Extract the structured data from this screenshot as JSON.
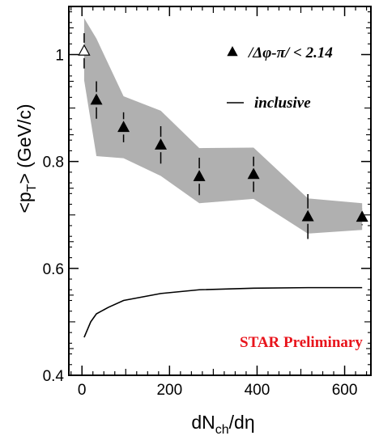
{
  "chart_data": {
    "type": "scatter",
    "title": "",
    "xlabel": "dN_ch/dη",
    "ylabel": "<p_T> (GeV/c)",
    "xlim": [
      -30,
      660
    ],
    "ylim": [
      0.4,
      1.09
    ],
    "x_ticks": [
      0,
      200,
      400,
      600
    ],
    "y_ticks": [
      0.4,
      0.6,
      0.8,
      1
    ],
    "x_tick_labels": [
      "0",
      "200",
      "400",
      "600"
    ],
    "y_tick_labels": [
      "0.4",
      "0.6",
      "0.8",
      "1"
    ],
    "grid": false,
    "legend_position": "top-right",
    "legend": {
      "marker_text_pre": "/Δφ-π/ < ",
      "marker_text_num": "2.14",
      "line_text": "inclusive"
    },
    "annotation": {
      "text": "STAR Preliminary",
      "color": "#e8141c"
    },
    "series": [
      {
        "name": "/Δφ-π/ < 2.14",
        "marker": "filled-triangle",
        "points": [
          {
            "x": 33,
            "y": 0.915,
            "err": 0.035
          },
          {
            "x": 95,
            "y": 0.864,
            "err": 0.028
          },
          {
            "x": 180,
            "y": 0.831,
            "err": 0.035
          },
          {
            "x": 268,
            "y": 0.772,
            "err": 0.035
          },
          {
            "x": 392,
            "y": 0.776,
            "err": 0.033
          },
          {
            "x": 516,
            "y": 0.697,
            "err": 0.042
          },
          {
            "x": 640,
            "y": 0.696,
            "err": 0.015
          }
        ]
      },
      {
        "name": "",
        "marker": "open-triangle",
        "points": [
          {
            "x": 5,
            "y": 1.007,
            "err": 0.033
          }
        ]
      },
      {
        "name": "inclusive",
        "style": "line",
        "x": [
          5,
          20,
          33,
          60,
          95,
          180,
          268,
          392,
          516,
          640
        ],
        "y": [
          0.471,
          0.5,
          0.515,
          0.527,
          0.54,
          0.553,
          0.56,
          0.563,
          0.564,
          0.564
        ]
      }
    ],
    "band": {
      "description_color": "#b0b0b0",
      "x": [
        5,
        33,
        95,
        180,
        268,
        392,
        516,
        640
      ],
      "upper": [
        1.068,
        1.03,
        0.922,
        0.895,
        0.825,
        0.826,
        0.731,
        0.722
      ],
      "lower": [
        0.952,
        0.81,
        0.806,
        0.773,
        0.722,
        0.73,
        0.665,
        0.672
      ]
    }
  }
}
